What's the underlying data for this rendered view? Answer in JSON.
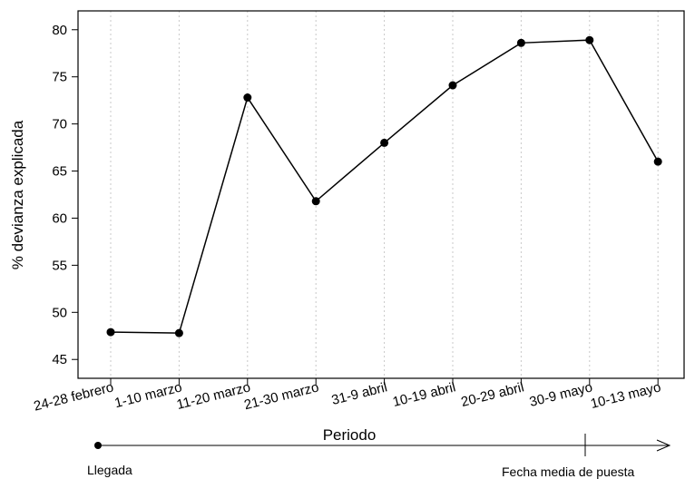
{
  "chart_data": {
    "type": "line",
    "title": "",
    "xlabel": "Periodo",
    "ylabel": "% devianza explicada",
    "categories": [
      "24-28 febrero",
      "1-10 marzo",
      "11-20 marzo",
      "21-30 marzo",
      "31-9 abril",
      "10-19 abril",
      "20-29 abril",
      "30-9 mayo",
      "10-13 mayo"
    ],
    "series": [
      {
        "values": [
          47.9,
          47.8,
          72.8,
          61.8,
          68.0,
          74.1,
          78.6,
          78.9,
          66.0
        ]
      }
    ],
    "ylim": [
      43,
      82
    ],
    "yticks": [
      45,
      50,
      55,
      60,
      65,
      70,
      75,
      80
    ],
    "grid": "vertical dotted",
    "colors": {
      "line": "#000000",
      "grid": "#c8c8c8"
    }
  },
  "annotations": {
    "start_label": "Llegada",
    "end_label": "Fecha media de puesta"
  }
}
